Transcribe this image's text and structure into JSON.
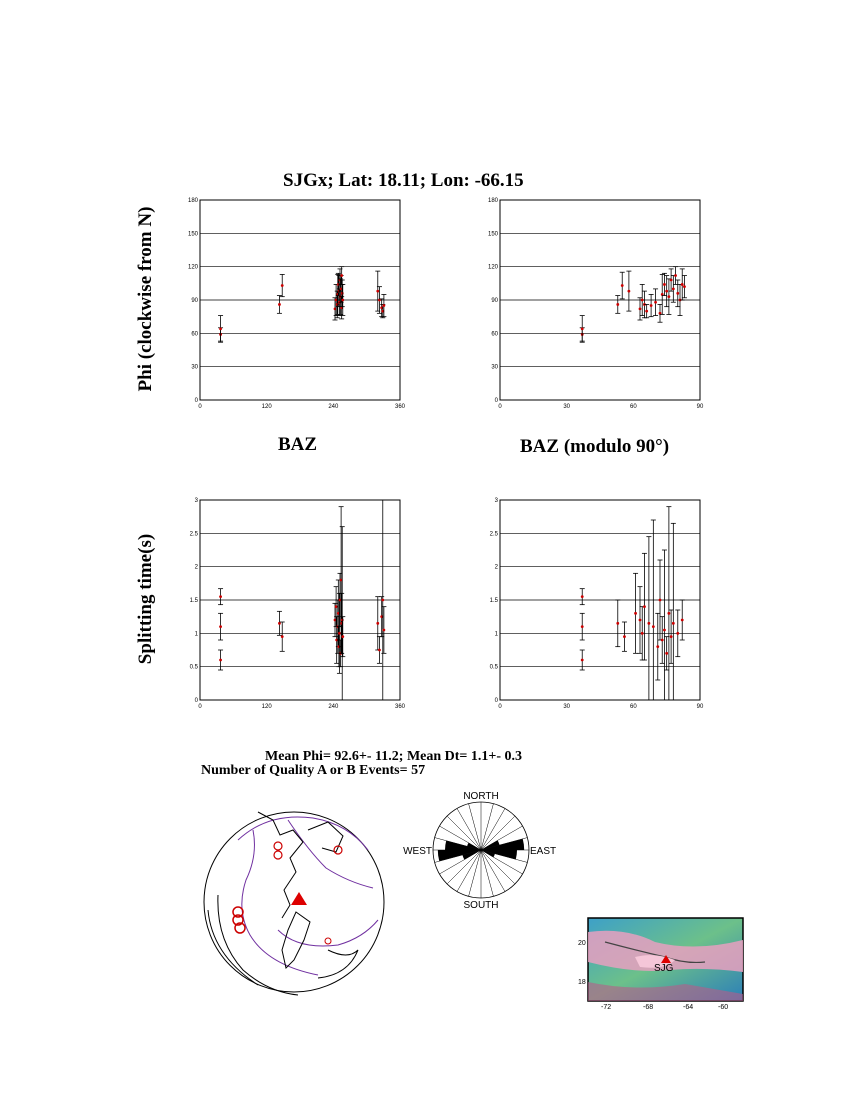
{
  "title": "SJGx; Lat:  18.11;  Lon:  -66.15",
  "ylabel_phi": "Phi (clockwise from N)",
  "ylabel_dt": "Splitting time(s)",
  "xlabel_baz": "BAZ",
  "xlabel_baz_mod": "BAZ (modulo 90°)",
  "stats": {
    "line1": "Mean Phi= 92.6+- 11.2; Mean Dt=  1.1+-  0.3",
    "line2": "Number of Quality A  or B Events= 57"
  },
  "colors": {
    "point": "#cc0000",
    "errorbar": "#000000",
    "grid": "#000000",
    "globe_coast": "#000000",
    "globe_plate": "#7030a0",
    "station": "#dd0000"
  },
  "chart_data": [
    {
      "type": "scatter",
      "name": "phi-vs-baz",
      "xlim": [
        0,
        360
      ],
      "ylim": [
        0,
        180
      ],
      "xticks": [
        0,
        120,
        240,
        360
      ],
      "yticks": [
        0,
        30,
        60,
        90,
        120,
        150,
        180
      ],
      "grid": "horizontal",
      "points": [
        {
          "x": 37,
          "y": 59,
          "e": 6
        },
        {
          "x": 37,
          "y": 64,
          "e": 12
        },
        {
          "x": 143,
          "y": 86,
          "e": 8
        },
        {
          "x": 148,
          "y": 103,
          "e": 10
        },
        {
          "x": 243,
          "y": 82,
          "e": 10
        },
        {
          "x": 245,
          "y": 90,
          "e": 14
        },
        {
          "x": 247,
          "y": 86,
          "e": 12
        },
        {
          "x": 248,
          "y": 95,
          "e": 18
        },
        {
          "x": 249,
          "y": 104,
          "e": 10
        },
        {
          "x": 250,
          "y": 98,
          "e": 14
        },
        {
          "x": 251,
          "y": 88,
          "e": 12
        },
        {
          "x": 252,
          "y": 108,
          "e": 10
        },
        {
          "x": 253,
          "y": 93,
          "e": 16
        },
        {
          "x": 254,
          "y": 100,
          "e": 12
        },
        {
          "x": 255,
          "y": 83,
          "e": 10
        },
        {
          "x": 255,
          "y": 112,
          "e": 8
        },
        {
          "x": 256,
          "y": 96,
          "e": 12
        },
        {
          "x": 257,
          "y": 90,
          "e": 14
        },
        {
          "x": 320,
          "y": 98,
          "e": 18
        },
        {
          "x": 323,
          "y": 90,
          "e": 12
        },
        {
          "x": 327,
          "y": 83,
          "e": 8
        },
        {
          "x": 329,
          "y": 80,
          "e": 6
        },
        {
          "x": 331,
          "y": 85,
          "e": 10
        }
      ]
    },
    {
      "type": "scatter",
      "name": "phi-vs-baz-mod90",
      "xlim": [
        0,
        90
      ],
      "ylim": [
        0,
        180
      ],
      "xticks": [
        0,
        30,
        60,
        90
      ],
      "yticks": [
        0,
        30,
        60,
        90,
        120,
        150,
        180
      ],
      "grid": "horizontal",
      "points": [
        {
          "x": 37,
          "y": 59,
          "e": 6
        },
        {
          "x": 37,
          "y": 64,
          "e": 12
        },
        {
          "x": 53,
          "y": 86,
          "e": 8
        },
        {
          "x": 55,
          "y": 103,
          "e": 12
        },
        {
          "x": 58,
          "y": 98,
          "e": 18
        },
        {
          "x": 63,
          "y": 82,
          "e": 10
        },
        {
          "x": 64,
          "y": 90,
          "e": 14
        },
        {
          "x": 65,
          "y": 86,
          "e": 12
        },
        {
          "x": 66,
          "y": 80,
          "e": 6
        },
        {
          "x": 68,
          "y": 85,
          "e": 10
        },
        {
          "x": 70,
          "y": 88,
          "e": 12
        },
        {
          "x": 72,
          "y": 78,
          "e": 8
        },
        {
          "x": 73,
          "y": 95,
          "e": 18
        },
        {
          "x": 74,
          "y": 104,
          "e": 10
        },
        {
          "x": 75,
          "y": 98,
          "e": 14
        },
        {
          "x": 76,
          "y": 93,
          "e": 16
        },
        {
          "x": 77,
          "y": 108,
          "e": 10
        },
        {
          "x": 78,
          "y": 100,
          "e": 12
        },
        {
          "x": 79,
          "y": 112,
          "e": 8
        },
        {
          "x": 80,
          "y": 96,
          "e": 12
        },
        {
          "x": 81,
          "y": 90,
          "e": 14
        },
        {
          "x": 82,
          "y": 104,
          "e": 14
        },
        {
          "x": 83,
          "y": 102,
          "e": 10
        }
      ]
    },
    {
      "type": "scatter",
      "name": "dt-vs-baz",
      "xlim": [
        0,
        360
      ],
      "ylim": [
        0,
        3.0
      ],
      "xticks": [
        0,
        120,
        240,
        360
      ],
      "yticks": [
        0,
        0.5,
        1.0,
        1.5,
        2.0,
        2.5,
        3.0
      ],
      "grid": "horizontal",
      "points": [
        {
          "x": 37,
          "y": 1.55,
          "e": 0.12
        },
        {
          "x": 37,
          "y": 1.1,
          "e": 0.2
        },
        {
          "x": 37,
          "y": 0.6,
          "e": 0.15
        },
        {
          "x": 143,
          "y": 1.15,
          "e": 0.18
        },
        {
          "x": 148,
          "y": 0.95,
          "e": 0.22
        },
        {
          "x": 243,
          "y": 1.2,
          "e": 0.25
        },
        {
          "x": 245,
          "y": 1.4,
          "e": 0.3
        },
        {
          "x": 246,
          "y": 0.9,
          "e": 0.35
        },
        {
          "x": 248,
          "y": 1.1,
          "e": 0.4
        },
        {
          "x": 249,
          "y": 1.3,
          "e": 0.5
        },
        {
          "x": 250,
          "y": 0.8,
          "e": 0.3
        },
        {
          "x": 251,
          "y": 1.0,
          "e": 0.6
        },
        {
          "x": 252,
          "y": 1.5,
          "e": 0.4
        },
        {
          "x": 253,
          "y": 0.7,
          "e": 0.2
        },
        {
          "x": 254,
          "y": 1.8,
          "e": 1.1
        },
        {
          "x": 255,
          "y": 1.15,
          "e": 0.45
        },
        {
          "x": 256,
          "y": 1.2,
          "e": 1.4
        },
        {
          "x": 257,
          "y": 0.95,
          "e": 0.3
        },
        {
          "x": 320,
          "y": 1.15,
          "e": 0.4
        },
        {
          "x": 323,
          "y": 0.75,
          "e": 0.2
        },
        {
          "x": 327,
          "y": 1.25,
          "e": 0.3
        },
        {
          "x": 329,
          "y": 1.5,
          "e": 1.5
        },
        {
          "x": 331,
          "y": 1.05,
          "e": 0.35
        }
      ]
    },
    {
      "type": "scatter",
      "name": "dt-vs-baz-mod90",
      "xlim": [
        0,
        90
      ],
      "ylim": [
        0,
        3.0
      ],
      "xticks": [
        0,
        30,
        60,
        90
      ],
      "yticks": [
        0,
        0.5,
        1.0,
        1.5,
        2.0,
        2.5,
        3.0
      ],
      "grid": "horizontal",
      "points": [
        {
          "x": 37,
          "y": 1.55,
          "e": 0.12
        },
        {
          "x": 37,
          "y": 1.1,
          "e": 0.2
        },
        {
          "x": 37,
          "y": 0.6,
          "e": 0.15
        },
        {
          "x": 53,
          "y": 1.15,
          "e": 0.35
        },
        {
          "x": 56,
          "y": 0.95,
          "e": 0.22
        },
        {
          "x": 61,
          "y": 1.3,
          "e": 0.6
        },
        {
          "x": 63,
          "y": 1.2,
          "e": 0.5
        },
        {
          "x": 64,
          "y": 1.0,
          "e": 0.4
        },
        {
          "x": 65,
          "y": 1.4,
          "e": 0.8
        },
        {
          "x": 67,
          "y": 1.15,
          "e": 1.3
        },
        {
          "x": 69,
          "y": 1.1,
          "e": 1.6
        },
        {
          "x": 71,
          "y": 0.8,
          "e": 0.5
        },
        {
          "x": 72,
          "y": 1.5,
          "e": 0.6
        },
        {
          "x": 73,
          "y": 0.9,
          "e": 0.35
        },
        {
          "x": 74,
          "y": 1.05,
          "e": 1.2
        },
        {
          "x": 75,
          "y": 0.7,
          "e": 0.25
        },
        {
          "x": 76,
          "y": 1.3,
          "e": 1.6
        },
        {
          "x": 77,
          "y": 0.95,
          "e": 0.4
        },
        {
          "x": 78,
          "y": 1.15,
          "e": 1.5
        },
        {
          "x": 80,
          "y": 1.0,
          "e": 0.35
        },
        {
          "x": 82,
          "y": 1.2,
          "e": 0.3
        }
      ]
    },
    {
      "type": "rose",
      "name": "phi-rose",
      "labels": {
        "north": "NORTH",
        "south": "SOUTH",
        "east": "EAST",
        "west": "WEST"
      },
      "sector_width_deg": 15,
      "sectors": [
        {
          "azimuth": 82.5,
          "radius": 0.9
        },
        {
          "azimuth": 97.5,
          "radius": 0.75
        },
        {
          "azimuth": 67.5,
          "radius": 0.4
        },
        {
          "azimuth": 112.5,
          "radius": 0.3
        }
      ]
    }
  ],
  "inset_map": {
    "station_label": "SJG",
    "lat_ticks": [
      "20",
      "18"
    ],
    "lon_ticks": [
      "-72",
      "-68",
      "-64",
      "-60"
    ]
  }
}
